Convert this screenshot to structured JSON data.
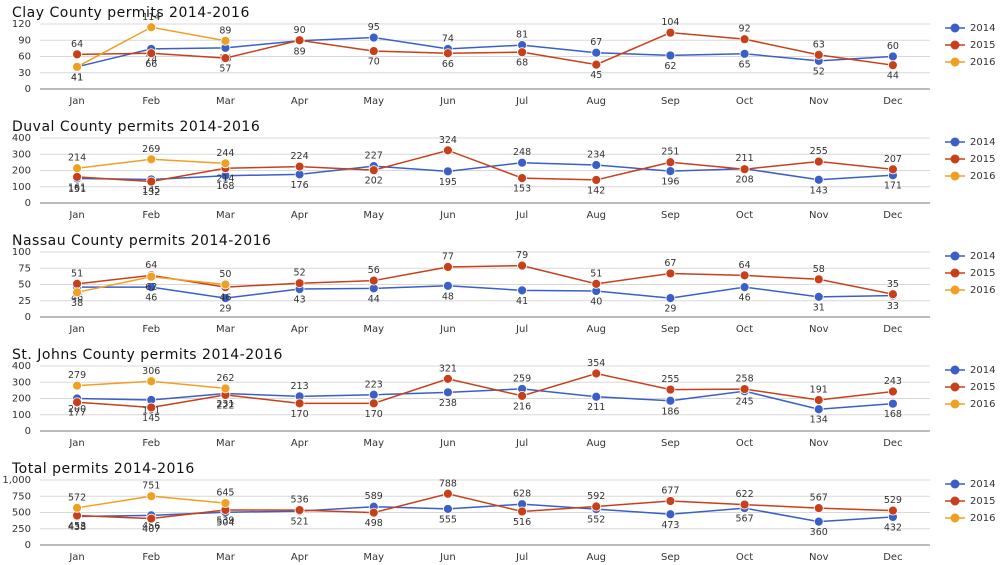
{
  "chart_data": [
    {
      "type": "line",
      "title": "Clay County permits 2014-2016",
      "categories": [
        "Jan",
        "Feb",
        "Mar",
        "Apr",
        "May",
        "Jun",
        "Jul",
        "Aug",
        "Sep",
        "Oct",
        "Nov",
        "Dec"
      ],
      "ylim": [
        0,
        120
      ],
      "yticks": [
        0,
        30,
        60,
        90,
        120
      ],
      "grid": true,
      "legend": "right",
      "series": [
        {
          "name": "2014",
          "color": "#3a5fc8",
          "values": [
            41,
            74,
            76,
            89,
            95,
            74,
            81,
            67,
            62,
            65,
            52,
            60
          ]
        },
        {
          "name": "2015",
          "color": "#c8401a",
          "values": [
            64,
            66,
            57,
            90,
            70,
            66,
            68,
            45,
            104,
            92,
            63,
            44
          ]
        },
        {
          "name": "2016",
          "color": "#f0a020",
          "values": [
            41,
            114,
            89,
            null,
            null,
            null,
            null,
            null,
            null,
            null,
            null,
            null
          ]
        }
      ]
    },
    {
      "type": "line",
      "title": "Duval County permits 2014-2016",
      "categories": [
        "Jan",
        "Feb",
        "Mar",
        "Apr",
        "May",
        "Jun",
        "Jul",
        "Aug",
        "Sep",
        "Oct",
        "Nov",
        "Dec"
      ],
      "ylim": [
        0,
        400
      ],
      "yticks": [
        0,
        100,
        200,
        300,
        400
      ],
      "grid": true,
      "legend": "right",
      "series": [
        {
          "name": "2014",
          "color": "#3a5fc8",
          "values": [
            151,
            145,
            168,
            176,
            227,
            195,
            248,
            234,
            196,
            211,
            143,
            171
          ]
        },
        {
          "name": "2015",
          "color": "#c8401a",
          "values": [
            161,
            132,
            214,
            224,
            202,
            324,
            153,
            142,
            251,
            208,
            255,
            207
          ]
        },
        {
          "name": "2016",
          "color": "#f0a020",
          "values": [
            214,
            269,
            244,
            null,
            null,
            null,
            null,
            null,
            null,
            null,
            null,
            null
          ]
        }
      ]
    },
    {
      "type": "line",
      "title": "Nassau County permits 2014-2016",
      "categories": [
        "Jan",
        "Feb",
        "Mar",
        "Apr",
        "May",
        "Jun",
        "Jul",
        "Aug",
        "Sep",
        "Oct",
        "Nov",
        "Dec"
      ],
      "ylim": [
        0,
        100
      ],
      "yticks": [
        0,
        25,
        50,
        75,
        100
      ],
      "grid": true,
      "legend": "right",
      "series": [
        {
          "name": "2014",
          "color": "#3a5fc8",
          "values": [
            46,
            46,
            29,
            43,
            44,
            48,
            41,
            40,
            29,
            46,
            31,
            33
          ]
        },
        {
          "name": "2015",
          "color": "#c8401a",
          "values": [
            51,
            64,
            46,
            52,
            56,
            77,
            79,
            51,
            67,
            64,
            58,
            35
          ]
        },
        {
          "name": "2016",
          "color": "#f0a020",
          "values": [
            38,
            62,
            50,
            null,
            null,
            null,
            null,
            null,
            null,
            null,
            null,
            null
          ]
        }
      ]
    },
    {
      "type": "line",
      "title": "St. Johns County permits 2014-2016",
      "categories": [
        "Jan",
        "Feb",
        "Mar",
        "Apr",
        "May",
        "Jun",
        "Jul",
        "Aug",
        "Sep",
        "Oct",
        "Nov",
        "Dec"
      ],
      "ylim": [
        0,
        400
      ],
      "yticks": [
        0,
        100,
        200,
        300,
        400
      ],
      "grid": true,
      "legend": "right",
      "series": [
        {
          "name": "2014",
          "color": "#3a5fc8",
          "values": [
            200,
            191,
            231,
            213,
            223,
            238,
            259,
            211,
            186,
            245,
            134,
            168
          ]
        },
        {
          "name": "2015",
          "color": "#c8401a",
          "values": [
            177,
            145,
            222,
            170,
            170,
            321,
            216,
            354,
            255,
            258,
            191,
            243
          ]
        },
        {
          "name": "2016",
          "color": "#f0a020",
          "values": [
            279,
            306,
            262,
            null,
            null,
            null,
            null,
            null,
            null,
            null,
            null,
            null
          ]
        }
      ]
    },
    {
      "type": "line",
      "title": "Total permits 2014-2016",
      "categories": [
        "Jan",
        "Feb",
        "Mar",
        "Apr",
        "May",
        "Jun",
        "Jul",
        "Aug",
        "Sep",
        "Oct",
        "Nov",
        "Dec"
      ],
      "ylim": [
        0,
        1000
      ],
      "yticks": [
        0,
        250,
        500,
        750,
        {
          "value": 1000,
          "label": "1,000"
        }
      ],
      "grid": true,
      "legend": "right",
      "series": [
        {
          "name": "2014",
          "color": "#3a5fc8",
          "values": [
            438,
            456,
            504,
            521,
            589,
            555,
            628,
            552,
            473,
            567,
            360,
            432
          ]
        },
        {
          "name": "2015",
          "color": "#c8401a",
          "values": [
            453,
            407,
            539,
            536,
            498,
            788,
            516,
            592,
            677,
            622,
            567,
            529
          ]
        },
        {
          "name": "2016",
          "color": "#f0a020",
          "values": [
            572,
            751,
            645,
            null,
            null,
            null,
            null,
            null,
            null,
            null,
            null,
            null
          ]
        }
      ]
    }
  ]
}
